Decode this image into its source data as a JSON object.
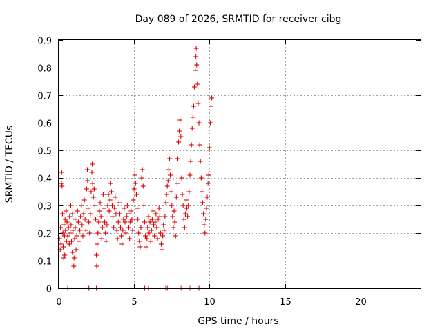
{
  "chart_data": {
    "type": "scatter",
    "title": "Day 089 of 2026, SRMTID for receiver cibg",
    "xlabel": "GPS time / hours",
    "ylabel": "SRMTID / TECUs",
    "xlim": [
      0,
      24
    ],
    "ylim": [
      0,
      0.9
    ],
    "xticks": [
      0,
      5,
      10,
      15,
      20
    ],
    "xtick_labels": [
      "0",
      "5",
      "10",
      "15",
      "20"
    ],
    "yticks": [
      0,
      0.1,
      0.2,
      0.3,
      0.4,
      0.5,
      0.6,
      0.7,
      0.8,
      0.9
    ],
    "ytick_labels": [
      "0",
      "0.1",
      "0.2",
      "0.3",
      "0.4",
      "0.5",
      "0.6",
      "0.7",
      "0.8",
      "0.9"
    ],
    "grid": true,
    "marker": "+",
    "color": "#e00000",
    "series": [
      {
        "name": "SRMTID",
        "points": [
          [
            0.05,
            0.18
          ],
          [
            0.1,
            0.14
          ],
          [
            0.12,
            0.22
          ],
          [
            0.15,
            0.16
          ],
          [
            0.18,
            0.38
          ],
          [
            0.2,
            0.42
          ],
          [
            0.22,
            0.37
          ],
          [
            0.25,
            0.27
          ],
          [
            0.28,
            0.2
          ],
          [
            0.3,
            0.15
          ],
          [
            0.33,
            0.11
          ],
          [
            0.35,
            0.23
          ],
          [
            0.38,
            0.19
          ],
          [
            0.4,
            0.12
          ],
          [
            0.42,
            0.25
          ],
          [
            0.45,
            0.21
          ],
          [
            0.5,
            0.28
          ],
          [
            0.52,
            0.17
          ],
          [
            0.55,
            0.24
          ],
          [
            0.6,
            0.19
          ],
          [
            0.65,
            0.22
          ],
          [
            0.7,
            0.16
          ],
          [
            0.72,
            0.26
          ],
          [
            0.75,
            0.2
          ],
          [
            0.8,
            0.3
          ],
          [
            0.82,
            0.23
          ],
          [
            0.85,
            0.17
          ],
          [
            0.9,
            0.13
          ],
          [
            0.92,
            0.27
          ],
          [
            0.95,
            0.21
          ],
          [
            1.0,
            0.08
          ],
          [
            1.02,
            0.11
          ],
          [
            1.05,
            0.18
          ],
          [
            1.08,
            0.25
          ],
          [
            1.1,
            0.22
          ],
          [
            1.15,
            0.14
          ],
          [
            1.2,
            0.19
          ],
          [
            1.25,
            0.28
          ],
          [
            1.3,
            0.24
          ],
          [
            1.35,
            0.17
          ],
          [
            1.4,
            0.21
          ],
          [
            1.45,
            0.26
          ],
          [
            1.5,
            0.3
          ],
          [
            1.55,
            0.23
          ],
          [
            1.6,
            0.19
          ],
          [
            1.65,
            0.27
          ],
          [
            1.7,
            0.32
          ],
          [
            1.75,
            0.25
          ],
          [
            1.8,
            0.21
          ],
          [
            1.85,
            0.36
          ],
          [
            1.9,
            0.43
          ],
          [
            1.92,
            0.39
          ],
          [
            1.95,
            0.29
          ],
          [
            2.0,
            0.24
          ],
          [
            2.05,
            0.2
          ],
          [
            2.1,
            0.27
          ],
          [
            2.15,
            0.35
          ],
          [
            2.2,
            0.42
          ],
          [
            2.22,
            0.45
          ],
          [
            2.25,
            0.38
          ],
          [
            2.3,
            0.33
          ],
          [
            2.35,
            0.36
          ],
          [
            2.4,
            0.3
          ],
          [
            2.45,
            0.25
          ],
          [
            2.5,
            0.12
          ],
          [
            2.52,
            0.08
          ],
          [
            2.55,
            0.16
          ],
          [
            2.6,
            0.2
          ],
          [
            2.65,
            0.24
          ],
          [
            2.7,
            0.28
          ],
          [
            2.75,
            0.31
          ],
          [
            2.8,
            0.26
          ],
          [
            2.85,
            0.18
          ],
          [
            2.9,
            0.22
          ],
          [
            2.95,
            0.34
          ],
          [
            3.0,
            0.29
          ],
          [
            3.05,
            0.24
          ],
          [
            3.1,
            0.2
          ],
          [
            3.15,
            0.17
          ],
          [
            3.2,
            0.23
          ],
          [
            3.25,
            0.3
          ],
          [
            3.3,
            0.34
          ],
          [
            3.35,
            0.28
          ],
          [
            3.4,
            0.32
          ],
          [
            3.45,
            0.38
          ],
          [
            3.5,
            0.35
          ],
          [
            3.55,
            0.3
          ],
          [
            3.6,
            0.26
          ],
          [
            3.65,
            0.22
          ],
          [
            3.7,
            0.29
          ],
          [
            3.75,
            0.33
          ],
          [
            3.8,
            0.27
          ],
          [
            3.85,
            0.21
          ],
          [
            3.9,
            0.18
          ],
          [
            3.95,
            0.24
          ],
          [
            4.0,
            0.31
          ],
          [
            4.05,
            0.27
          ],
          [
            4.1,
            0.22
          ],
          [
            4.15,
            0.19
          ],
          [
            4.2,
            0.16
          ],
          [
            4.25,
            0.21
          ],
          [
            4.3,
            0.25
          ],
          [
            4.35,
            0.29
          ],
          [
            4.4,
            0.24
          ],
          [
            4.45,
            0.2
          ],
          [
            4.5,
            0.26
          ],
          [
            4.55,
            0.3
          ],
          [
            4.6,
            0.27
          ],
          [
            4.65,
            0.22
          ],
          [
            4.7,
            0.18
          ],
          [
            4.75,
            0.24
          ],
          [
            4.8,
            0.28
          ],
          [
            4.85,
            0.25
          ],
          [
            4.9,
            0.21
          ],
          [
            4.95,
            0.32
          ],
          [
            5.0,
            0.36
          ],
          [
            5.05,
            0.41
          ],
          [
            5.1,
            0.38
          ],
          [
            5.15,
            0.34
          ],
          [
            5.2,
            0.29
          ],
          [
            5.25,
            0.25
          ],
          [
            5.3,
            0.2
          ],
          [
            5.35,
            0.17
          ],
          [
            5.4,
            0.15
          ],
          [
            5.45,
            0.22
          ],
          [
            5.5,
            0.4
          ],
          [
            5.55,
            0.43
          ],
          [
            5.6,
            0.37
          ],
          [
            5.65,
            0.3
          ],
          [
            5.7,
            0.24
          ],
          [
            5.75,
            0.19
          ],
          [
            5.8,
            0.15
          ],
          [
            5.85,
            0.18
          ],
          [
            5.9,
            0.22
          ],
          [
            5.95,
            0.26
          ],
          [
            6.0,
            0.2
          ],
          [
            6.05,
            0.24
          ],
          [
            6.1,
            0.17
          ],
          [
            6.15,
            0.21
          ],
          [
            6.2,
            0.25
          ],
          [
            6.25,
            0.28
          ],
          [
            6.3,
            0.23
          ],
          [
            6.35,
            0.19
          ],
          [
            6.4,
            0.24
          ],
          [
            6.45,
            0.27
          ],
          [
            6.5,
            0.22
          ],
          [
            6.55,
            0.18
          ],
          [
            6.6,
            0.25
          ],
          [
            6.65,
            0.29
          ],
          [
            6.7,
            0.26
          ],
          [
            6.75,
            0.2
          ],
          [
            6.8,
            0.16
          ],
          [
            6.85,
            0.14
          ],
          [
            6.9,
            0.19
          ],
          [
            6.95,
            0.23
          ],
          [
            7.0,
            0.21
          ],
          [
            7.05,
            0.26
          ],
          [
            7.1,
            0.31
          ],
          [
            7.15,
            0.34
          ],
          [
            7.2,
            0.37
          ],
          [
            7.25,
            0.39
          ],
          [
            7.3,
            0.43
          ],
          [
            7.35,
            0.47
          ],
          [
            7.4,
            0.41
          ],
          [
            7.45,
            0.35
          ],
          [
            7.5,
            0.3
          ],
          [
            7.55,
            0.26
          ],
          [
            7.6,
            0.22
          ],
          [
            7.65,
            0.28
          ],
          [
            7.7,
            0.24
          ],
          [
            7.75,
            0.19
          ],
          [
            7.8,
            0.33
          ],
          [
            7.85,
            0.38
          ],
          [
            7.9,
            0.47
          ],
          [
            7.95,
            0.53
          ],
          [
            8.0,
            0.57
          ],
          [
            8.05,
            0.61
          ],
          [
            8.1,
            0.55
          ],
          [
            8.15,
            0.4
          ],
          [
            8.2,
            0.34
          ],
          [
            8.25,
            0.3
          ],
          [
            8.3,
            0.25
          ],
          [
            8.35,
            0.22
          ],
          [
            8.4,
            0.27
          ],
          [
            8.45,
            0.32
          ],
          [
            8.5,
            0.29
          ],
          [
            8.55,
            0.26
          ],
          [
            8.6,
            0.3
          ],
          [
            8.65,
            0.35
          ],
          [
            8.7,
            0.41
          ],
          [
            8.75,
            0.46
          ],
          [
            8.8,
            0.52
          ],
          [
            8.85,
            0.58
          ],
          [
            8.9,
            0.62
          ],
          [
            8.95,
            0.66
          ],
          [
            9.0,
            0.73
          ],
          [
            9.05,
            0.79
          ],
          [
            9.1,
            0.84
          ],
          [
            9.12,
            0.87
          ],
          [
            9.15,
            0.81
          ],
          [
            9.2,
            0.74
          ],
          [
            9.25,
            0.67
          ],
          [
            9.3,
            0.6
          ],
          [
            9.35,
            0.52
          ],
          [
            9.4,
            0.46
          ],
          [
            9.45,
            0.4
          ],
          [
            9.5,
            0.35
          ],
          [
            9.55,
            0.31
          ],
          [
            9.6,
            0.27
          ],
          [
            9.65,
            0.23
          ],
          [
            9.7,
            0.2
          ],
          [
            9.75,
            0.25
          ],
          [
            9.8,
            0.29
          ],
          [
            9.85,
            0.33
          ],
          [
            9.9,
            0.38
          ],
          [
            9.95,
            0.41
          ],
          [
            10.0,
            0.51
          ],
          [
            10.05,
            0.6
          ],
          [
            10.1,
            0.66
          ],
          [
            10.15,
            0.69
          ],
          [
            0.6,
            0.0
          ],
          [
            2.0,
            0.0
          ],
          [
            2.5,
            0.0
          ],
          [
            5.7,
            0.0
          ],
          [
            5.95,
            0.0
          ],
          [
            7.1,
            0.0
          ],
          [
            7.2,
            0.0
          ],
          [
            8.05,
            0.0
          ],
          [
            8.15,
            0.0
          ],
          [
            8.65,
            0.0
          ],
          [
            8.75,
            0.0
          ],
          [
            9.3,
            0.0
          ]
        ]
      }
    ]
  }
}
